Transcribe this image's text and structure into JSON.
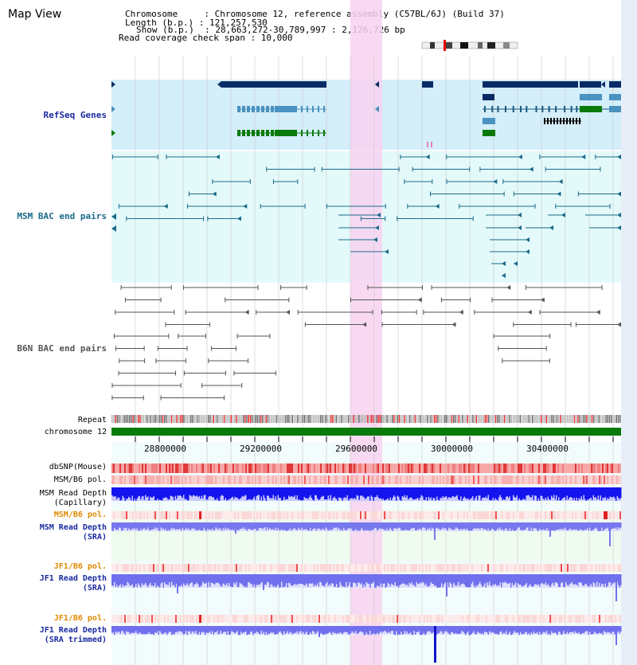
{
  "title": "Map View",
  "info": {
    "line1": "Chromosome     : Chromosome 12, reference assembly (C57BL/6J) (Build 37)",
    "line2": "Length (b.p.) : 121,257,530",
    "line3": "Show (b.p.)  : 28,663,272-30,789,997 : 2,126,726 bp",
    "line4": "Read coverage check span : 10,000"
  },
  "tracks": {
    "refseq": "RefSeq Genes",
    "msm_bac": "MSM BAC end pairs",
    "b6n_bac": "B6N BAC end pairs",
    "repeat": "Repeat",
    "chromosome": "chromosome 12",
    "dbsnp": "dbSNP(Mouse)",
    "msm_pol": "MSM/B6 pol.",
    "msm_depth_cap_1": "MSM Read Depth",
    "msm_depth_cap_2": "(Capillary)",
    "msm_pol2": "MSM/B6 pol.",
    "msm_depth_sra_1": "MSM Read Depth",
    "msm_depth_sra_2": "(SRA)",
    "jf1_pol": "JF1/B6 pol.",
    "jf1_depth_sra_1": "JF1 Read Depth",
    "jf1_depth_sra_2": "(SRA)",
    "jf1_pol2": "JF1/B6 pol.",
    "jf1_depth_trim_1": "JF1 Read Depth",
    "jf1_depth_trim_2": "(SRA trimmed)"
  },
  "axis_ticks": [
    "28800000",
    "29200000",
    "29600000",
    "30000000",
    "30400000"
  ],
  "colors": {
    "refseq_bg": "#d4eefa",
    "msm_bg": "#e4fafa",
    "highlight": "#f8d2f0",
    "dark_gene": "#0a2c66",
    "mid_gene": "#4a92c0",
    "green_gene": "#0a7a0a",
    "bac_msm": "#1a6a8a",
    "bac_b6n": "#555555",
    "label_blue": "#1a2aa0",
    "label_orange": "#e08a00",
    "depth_blue": "#1010ee",
    "depth_light": "#7a7aee"
  }
}
